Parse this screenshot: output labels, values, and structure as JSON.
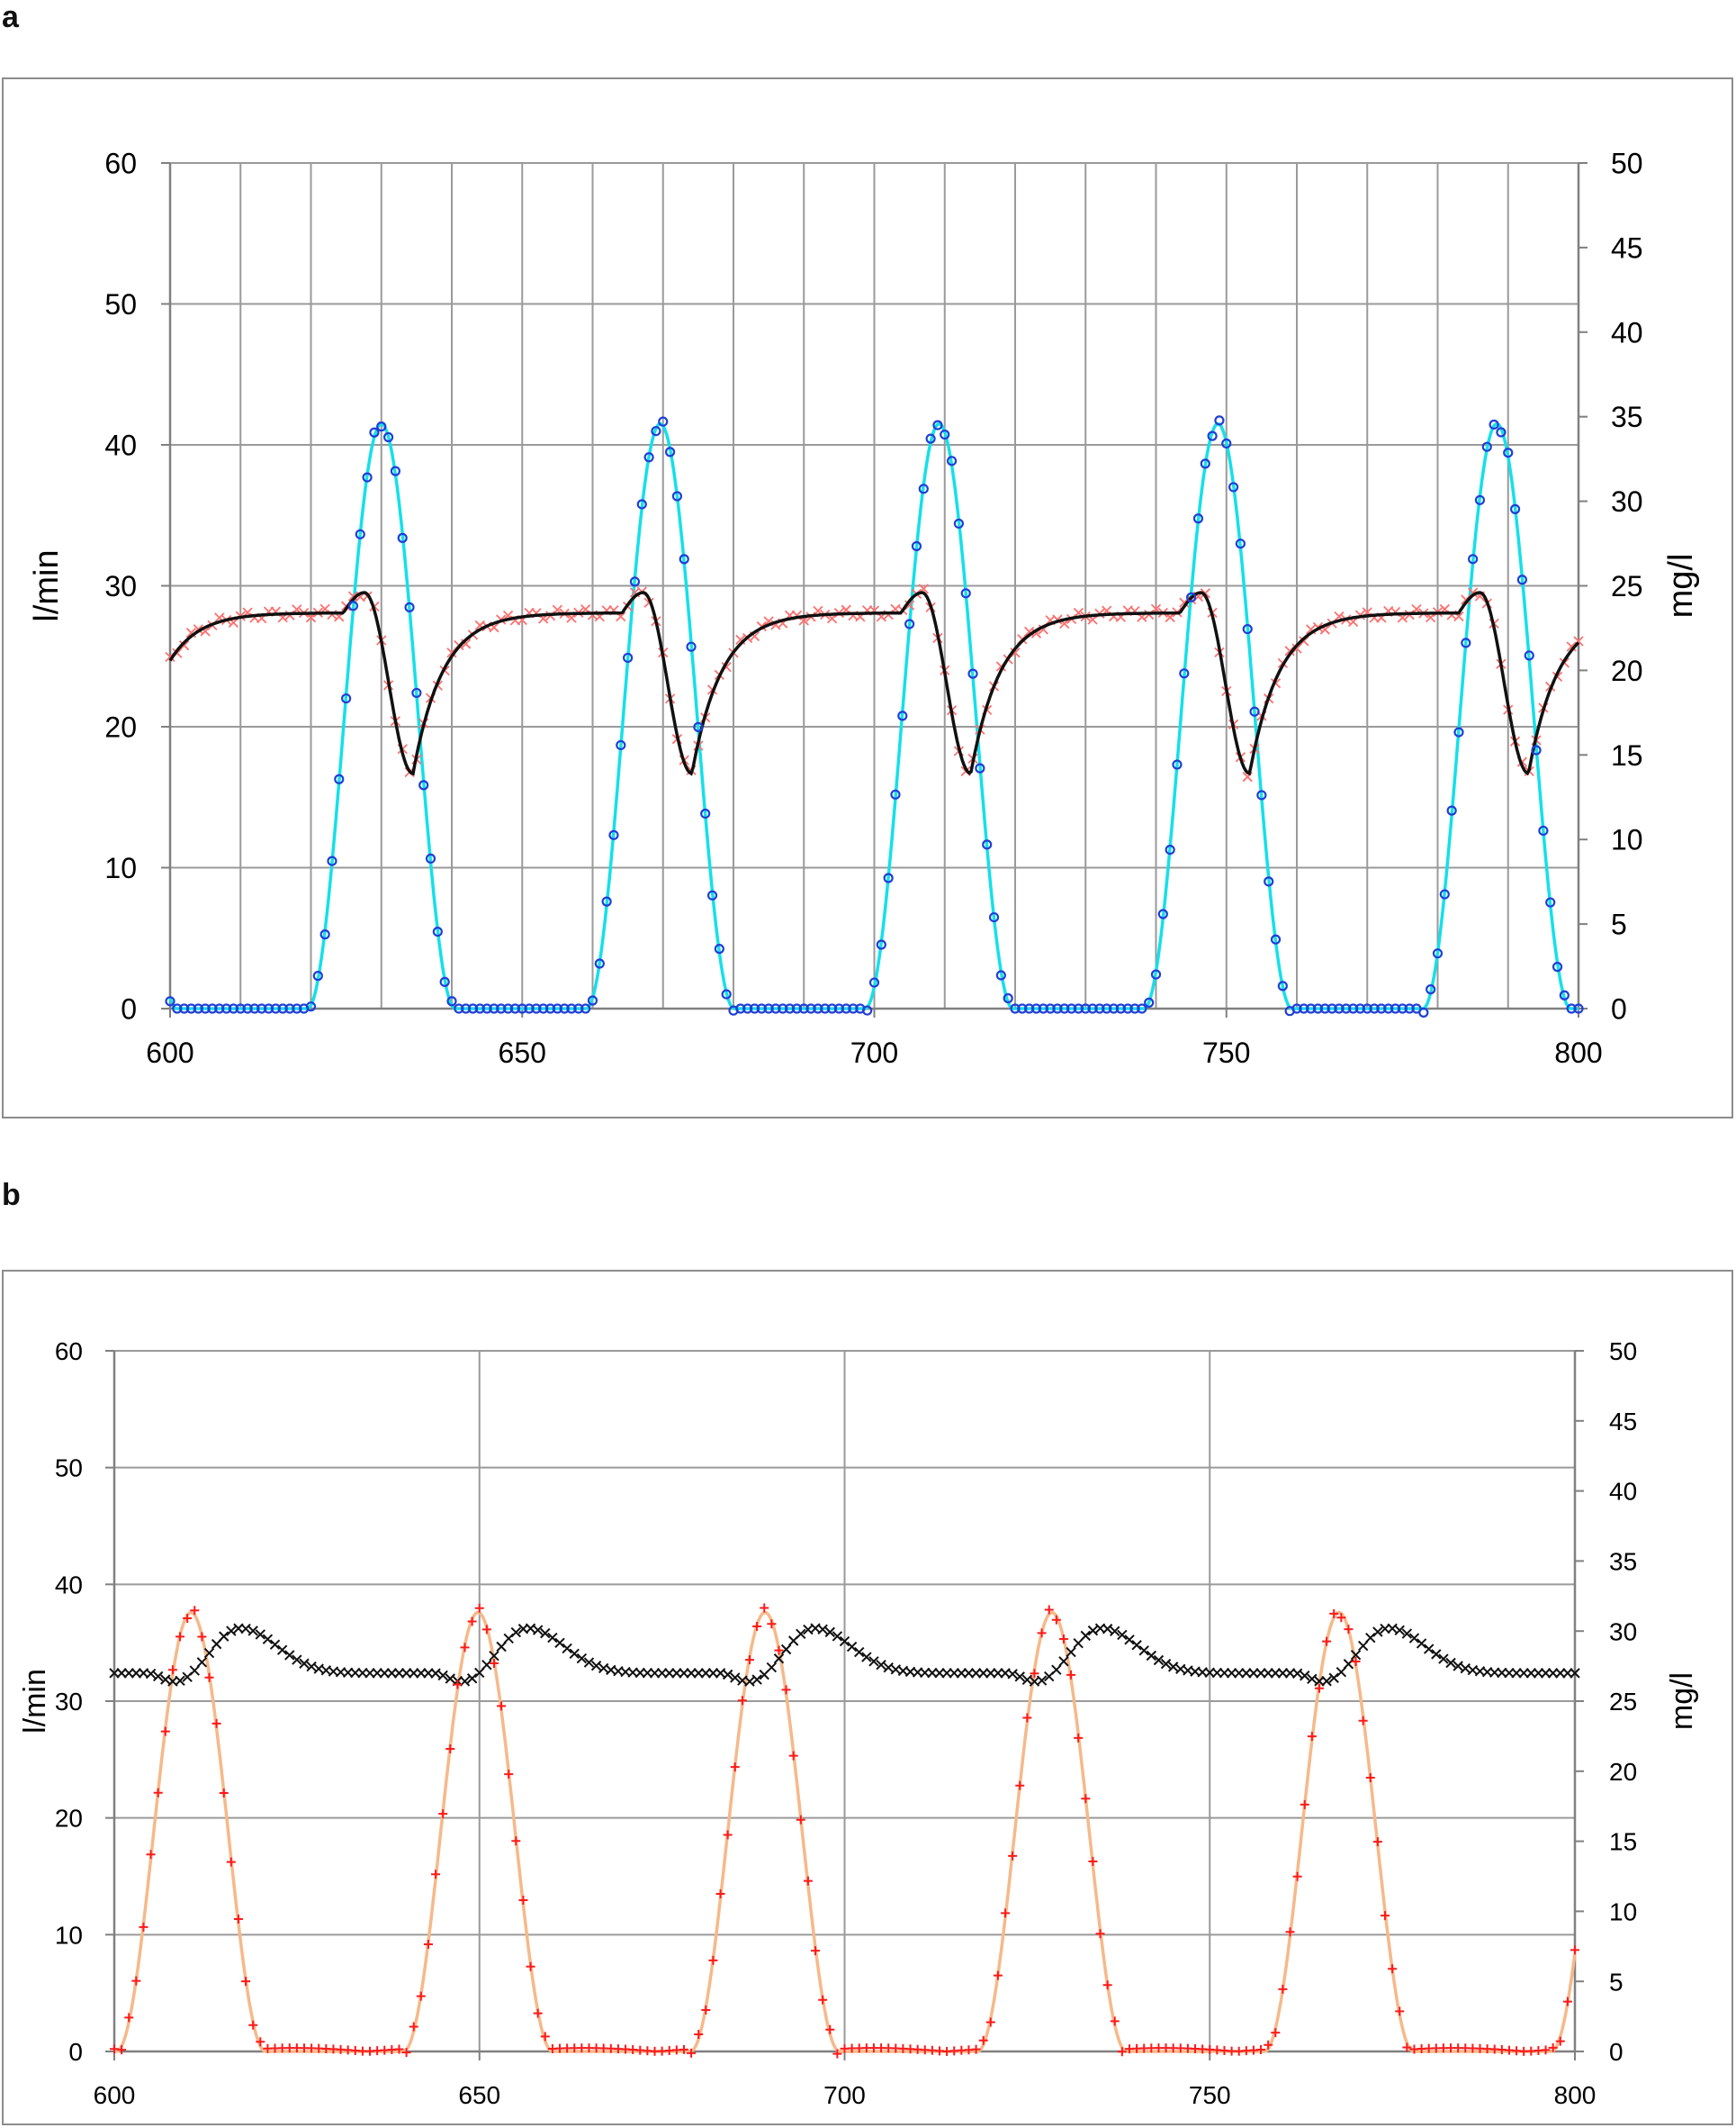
{
  "panels": {
    "a": {
      "letter": "a"
    },
    "b": {
      "letter": "b"
    }
  },
  "chart_data": [
    {
      "id": "a",
      "type": "line",
      "title": "",
      "xlabel": "",
      "ylabel": "l/min",
      "y2label": "mg/l",
      "xlim": [
        600,
        800
      ],
      "ylim": [
        0,
        60
      ],
      "y2lim": [
        0,
        50
      ],
      "xticks": [
        600,
        650,
        700,
        750,
        800
      ],
      "yticks": [
        0,
        10,
        20,
        30,
        40,
        50,
        60
      ],
      "y2ticks": [
        0,
        5,
        10,
        15,
        20,
        25,
        30,
        35,
        40,
        45,
        50
      ],
      "grid": "vertical every 10, horizontal every 10 l/min",
      "legend": "none",
      "cycle": {
        "period": 39.6,
        "flow_peak_time": 630.0,
        "flow_peak_l_min": 41.5,
        "flow_halfwidth": 10.5,
        "conc_plateau_mg_l": 23.4,
        "conc_peak_time": 627.6,
        "conc_peak_mg_l": 24.6,
        "conc_min_time": 634.5,
        "conc_min_mg_l": 13.9,
        "conc_start_mg_l": 18.5,
        "conc_end_mg_l": 21.5
      },
      "series": [
        {
          "role": "flow_measured",
          "axis": "left",
          "style": "blue-circle-markers",
          "color": "#1f3fd6"
        },
        {
          "role": "flow_model",
          "axis": "left",
          "style": "cyan-line",
          "color": "#14e0ea"
        },
        {
          "role": "conc_measured",
          "axis": "right",
          "style": "red-x-markers",
          "color": "#ff6f6f"
        },
        {
          "role": "conc_model",
          "axis": "right",
          "style": "black-line",
          "color": "#111111"
        }
      ]
    },
    {
      "id": "b",
      "type": "line",
      "title": "",
      "xlabel": "",
      "ylabel": "l/min",
      "y2label": "mg/l",
      "xlim": [
        600,
        800
      ],
      "ylim": [
        0,
        60
      ],
      "y2lim": [
        0,
        50
      ],
      "xticks": [
        600,
        650,
        700,
        750,
        800
      ],
      "yticks": [
        0,
        10,
        20,
        30,
        40,
        50,
        60
      ],
      "y2ticks": [
        0,
        5,
        10,
        15,
        20,
        25,
        30,
        35,
        40,
        45,
        50
      ],
      "grid": "vertical every 50, horizontal every 10 l/min",
      "legend": "none",
      "cycle": {
        "period": 39.3,
        "flow_peak_time": 610.5,
        "flow_peak_l_min": 37.6,
        "flow_halfwidth": 10.2,
        "conc_plateau_mg_l": 27.0,
        "conc_peak_time": 617.3,
        "conc_peak_mg_l": 30.2,
        "conc_min_time": 608.3,
        "conc_min_mg_l": 26.4
      },
      "series": [
        {
          "role": "flow_measured",
          "axis": "left",
          "style": "red-plus-markers",
          "color": "#ff1a1a"
        },
        {
          "role": "flow_model",
          "axis": "left",
          "style": "orange-line",
          "color": "#f6b98a"
        },
        {
          "role": "conc_measured",
          "axis": "right",
          "style": "black-x-markers",
          "color": "#111111"
        }
      ]
    }
  ]
}
